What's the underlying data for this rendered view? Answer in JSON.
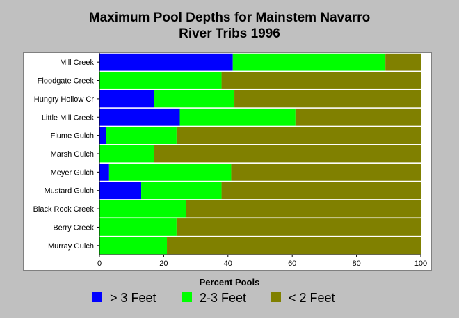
{
  "chart_data": {
    "type": "bar",
    "orientation": "horizontal",
    "stacked": true,
    "title": "Maximum Pool Depths for Mainstem Navarro River Tribs 1996",
    "title_lines": [
      "Maximum Pool Depths for Mainstem Navarro",
      "River Tribs 1996"
    ],
    "xlabel": "Percent Pools",
    "ylabel": "",
    "xlim": [
      0,
      100
    ],
    "xticks": [
      0,
      20,
      40,
      60,
      80,
      100
    ],
    "grid": false,
    "legend_position": "bottom",
    "categories": [
      "Mill Creek",
      "Floodgate Creek",
      "Hungry Hollow Cr",
      "Little Mill Creek",
      "Flume Gulch",
      "Marsh Gulch",
      "Meyer Gulch",
      "Mustard Gulch",
      "Black Rock Creek",
      "Berry Creek",
      "Murray Gulch"
    ],
    "series": [
      {
        "name": "> 3 Feet",
        "color": "#0000ff",
        "values": [
          41.5,
          0,
          17,
          25,
          2,
          0,
          3,
          13,
          0,
          0,
          0
        ]
      },
      {
        "name": "2-3 Feet",
        "color": "#00ff00",
        "values": [
          47.5,
          38,
          25,
          36,
          22,
          17,
          38,
          25,
          27,
          24,
          21
        ]
      },
      {
        "name": "< 2 Feet",
        "color": "#808000",
        "values": [
          11,
          62,
          58,
          39,
          76,
          83,
          59,
          62,
          73,
          76,
          79
        ]
      }
    ]
  }
}
